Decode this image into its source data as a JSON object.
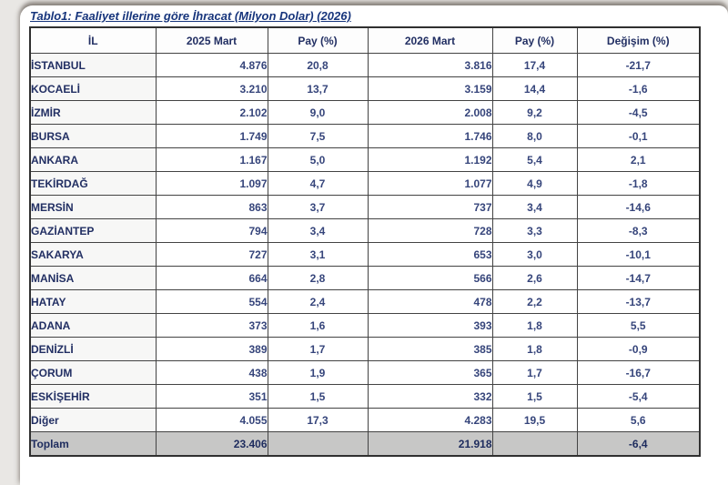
{
  "title": "Tablo1: Faaliyet illerine göre İhracat (Milyon Dolar) (2026)",
  "colors": {
    "text_navy": "#222f63",
    "number_navy": "#36457b",
    "total_row_bg": "#c7c7c6",
    "border": "#434343"
  },
  "table": {
    "columns": [
      "İL",
      "2025 Mart",
      "Pay  (%)",
      "2026 Mart",
      "Pay  (%)",
      "Değişim (%)"
    ],
    "rows": [
      [
        "İSTANBUL",
        "4.876",
        "20,8",
        "3.816",
        "17,4",
        "-21,7"
      ],
      [
        "KOCAELİ",
        "3.210",
        "13,7",
        "3.159",
        "14,4",
        "-1,6"
      ],
      [
        "İZMİR",
        "2.102",
        "9,0",
        "2.008",
        "9,2",
        "-4,5"
      ],
      [
        "BURSA",
        "1.749",
        "7,5",
        "1.746",
        "8,0",
        "-0,1"
      ],
      [
        "ANKARA",
        "1.167",
        "5,0",
        "1.192",
        "5,4",
        "2,1"
      ],
      [
        "TEKİRDAĞ",
        "1.097",
        "4,7",
        "1.077",
        "4,9",
        "-1,8"
      ],
      [
        "MERSİN",
        "863",
        "3,7",
        "737",
        "3,4",
        "-14,6"
      ],
      [
        "GAZİANTEP",
        "794",
        "3,4",
        "728",
        "3,3",
        "-8,3"
      ],
      [
        "SAKARYA",
        "727",
        "3,1",
        "653",
        "3,0",
        "-10,1"
      ],
      [
        "MANİSA",
        "664",
        "2,8",
        "566",
        "2,6",
        "-14,7"
      ],
      [
        "HATAY",
        "554",
        "2,4",
        "478",
        "2,2",
        "-13,7"
      ],
      [
        "ADANA",
        "373",
        "1,6",
        "393",
        "1,8",
        "5,5"
      ],
      [
        "DENİZLİ",
        "389",
        "1,7",
        "385",
        "1,8",
        "-0,9"
      ],
      [
        "ÇORUM",
        "438",
        "1,9",
        "365",
        "1,7",
        "-16,7"
      ],
      [
        "ESKİŞEHİR",
        "351",
        "1,5",
        "332",
        "1,5",
        "-5,4"
      ],
      [
        "Diğer",
        "4.055",
        "17,3",
        "4.283",
        "19,5",
        "5,6"
      ]
    ],
    "total": [
      "Toplam",
      "23.406",
      "",
      "21.918",
      "",
      "-6,4"
    ]
  }
}
